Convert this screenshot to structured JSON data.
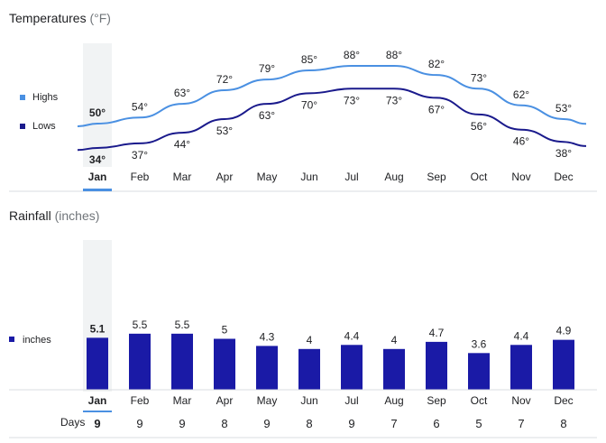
{
  "temperatures": {
    "title": "Temperatures",
    "unit": "(°F)",
    "legend_highs": "Highs",
    "legend_lows": "Lows",
    "color_highs": "#4a90e2",
    "color_lows": "#1a1a8c"
  },
  "rainfall": {
    "title": "Rainfall",
    "unit": "(inches)",
    "legend": "inches",
    "bar_color": "#1a1aa6",
    "days_label": "Days"
  },
  "selected_month": "Jan",
  "chart_data": [
    {
      "type": "line",
      "title": "Temperatures (°F)",
      "categories": [
        "Jan",
        "Feb",
        "Mar",
        "Apr",
        "May",
        "Jun",
        "Jul",
        "Aug",
        "Sep",
        "Oct",
        "Nov",
        "Dec"
      ],
      "series": [
        {
          "name": "Highs",
          "values": [
            50,
            54,
            63,
            72,
            79,
            85,
            88,
            88,
            82,
            73,
            62,
            53
          ],
          "labels": [
            "50°",
            "54°",
            "63°",
            "72°",
            "79°",
            "85°",
            "88°",
            "88°",
            "82°",
            "73°",
            "62°",
            "53°"
          ]
        },
        {
          "name": "Lows",
          "values": [
            34,
            37,
            44,
            53,
            63,
            70,
            73,
            73,
            67,
            56,
            46,
            38
          ],
          "labels": [
            "34°",
            "37°",
            "44°",
            "53°",
            "63°",
            "70°",
            "73°",
            "73°",
            "67°",
            "56°",
            "46°",
            "38°"
          ]
        }
      ],
      "xlabel": "",
      "ylabel": "",
      "grid": false,
      "legend_position": "left"
    },
    {
      "type": "bar",
      "title": "Rainfall (inches)",
      "categories": [
        "Jan",
        "Feb",
        "Mar",
        "Apr",
        "May",
        "Jun",
        "Jul",
        "Aug",
        "Sep",
        "Oct",
        "Nov",
        "Dec"
      ],
      "series": [
        {
          "name": "inches",
          "values": [
            5.1,
            5.5,
            5.5,
            5,
            4.3,
            4,
            4.4,
            4,
            4.7,
            3.6,
            4.4,
            4.9
          ],
          "labels": [
            "5.1",
            "5.5",
            "5.5",
            "5",
            "4.3",
            "4",
            "4.4",
            "4",
            "4.7",
            "3.6",
            "4.4",
            "4.9"
          ]
        }
      ],
      "days": [
        9,
        9,
        9,
        8,
        9,
        8,
        9,
        7,
        6,
        5,
        7,
        8
      ],
      "xlabel": "",
      "ylabel": "",
      "grid": false,
      "legend_position": "left"
    }
  ]
}
